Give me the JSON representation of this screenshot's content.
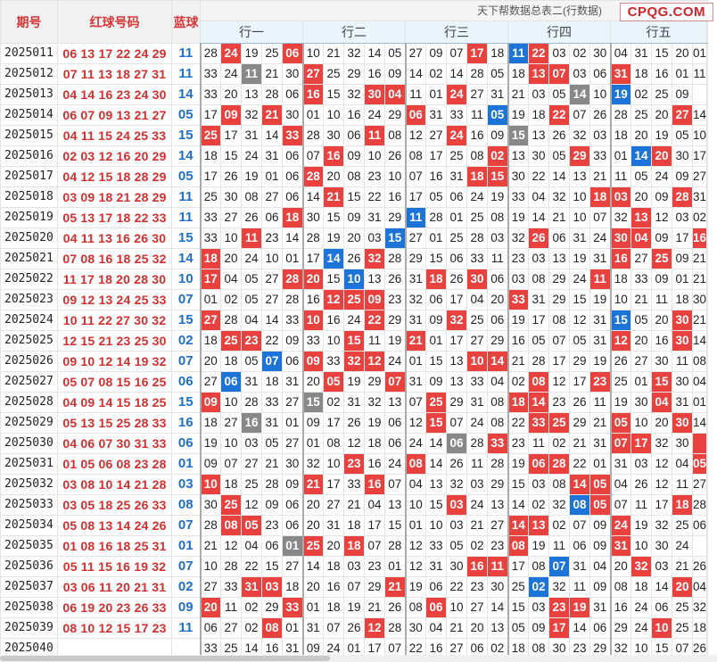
{
  "header": {
    "issue_label": "期号",
    "red_label": "红球号码",
    "blue_label": "蓝球",
    "banner": "天下帮数据总表二(行数据)",
    "logo": "CPQG.COM",
    "groups": [
      "行一",
      "行二",
      "行三",
      "行四",
      "行五"
    ]
  },
  "colors": {
    "red_ball": "#d42e2e",
    "blue_ball": "#1f6fc6",
    "highlight_red": "#e8413e",
    "highlight_blue": "#1c74d8",
    "highlight_gray": "#888888"
  },
  "rows": [
    {
      "issue": "2025011",
      "red": "06 13 17 22 24 29",
      "blue": "11",
      "cells": [
        "28",
        "24",
        "19",
        "25",
        "06",
        "10",
        "21",
        "32",
        "14",
        "05",
        "27",
        "09",
        "07",
        "17",
        "18",
        "11",
        "22",
        "03",
        "02",
        "30",
        "04",
        "31",
        "15",
        "20",
        "01"
      ],
      "hl": {
        "1": "r",
        "4": "r",
        "13": "r",
        "15": "b",
        "16": "r"
      }
    },
    {
      "issue": "2025012",
      "red": "07 11 13 18 27 31",
      "blue": "11",
      "cells": [
        "33",
        "24",
        "11",
        "21",
        "30",
        "27",
        "25",
        "29",
        "16",
        "09",
        "14",
        "02",
        "14",
        "28",
        "05",
        "18",
        "13",
        "07",
        "03",
        "06",
        "31",
        "18",
        "16",
        "01",
        "11"
      ],
      "hl": {
        "2": "g",
        "5": "r",
        "16": "r",
        "17": "r",
        "20": "r"
      }
    },
    {
      "issue": "2025013",
      "red": "04 14 16 23 24 30",
      "blue": "14",
      "cells": [
        "33",
        "20",
        "13",
        "28",
        "06",
        "16",
        "15",
        "32",
        "30",
        "04",
        "11",
        "01",
        "24",
        "27",
        "31",
        "21",
        "03",
        "05",
        "14",
        "10",
        "19",
        "02",
        "25",
        "09",
        ""
      ],
      "hl": {
        "5": "r",
        "8": "r",
        "9": "r",
        "12": "r",
        "18": "g",
        "20": "b"
      }
    },
    {
      "issue": "2025014",
      "red": "06 07 09 13 21 27",
      "blue": "05",
      "cells": [
        "17",
        "09",
        "32",
        "21",
        "30",
        "01",
        "10",
        "16",
        "24",
        "29",
        "06",
        "31",
        "33",
        "11",
        "05",
        "19",
        "18",
        "22",
        "07",
        "26",
        "28",
        "25",
        "20",
        "27",
        "14"
      ],
      "hl": {
        "1": "r",
        "3": "r",
        "10": "r",
        "14": "b",
        "17": "r",
        "23": "r"
      }
    },
    {
      "issue": "2025015",
      "red": "04 11 15 24 25 33",
      "blue": "15",
      "cells": [
        "25",
        "17",
        "31",
        "14",
        "33",
        "28",
        "30",
        "06",
        "11",
        "08",
        "12",
        "27",
        "24",
        "16",
        "09",
        "15",
        "13",
        "26",
        "32",
        "03",
        "18",
        "20",
        "19",
        "05",
        "10"
      ],
      "hl": {
        "0": "r",
        "4": "r",
        "8": "r",
        "12": "r",
        "15": "g"
      }
    },
    {
      "issue": "2025016",
      "red": "02 03 12 16 20 29",
      "blue": "14",
      "cells": [
        "18",
        "15",
        "24",
        "31",
        "06",
        "07",
        "16",
        "09",
        "10",
        "26",
        "08",
        "17",
        "25",
        "08",
        "02",
        "13",
        "30",
        "05",
        "29",
        "33",
        "01",
        "14",
        "20",
        "30",
        "17"
      ],
      "hl": {
        "6": "r",
        "14": "r",
        "18": "r",
        "21": "b",
        "22": "r"
      }
    },
    {
      "issue": "2025017",
      "red": "04 12 15 18 28 29",
      "blue": "05",
      "cells": [
        "17",
        "26",
        "19",
        "01",
        "06",
        "28",
        "20",
        "08",
        "23",
        "10",
        "07",
        "16",
        "31",
        "18",
        "15",
        "30",
        "22",
        "14",
        "13",
        "21",
        "11",
        "05",
        "24",
        "09",
        "27"
      ],
      "hl": {
        "5": "r",
        "13": "r",
        "14": "r"
      }
    },
    {
      "issue": "2025018",
      "red": "03 09 18 21 28 29",
      "blue": "11",
      "cells": [
        "25",
        "30",
        "08",
        "27",
        "06",
        "14",
        "21",
        "15",
        "22",
        "16",
        "17",
        "05",
        "06",
        "24",
        "19",
        "33",
        "04",
        "32",
        "10",
        "18",
        "03",
        "20",
        "09",
        "28",
        "31"
      ],
      "hl": {
        "6": "r",
        "19": "r",
        "20": "r",
        "23": "r"
      }
    },
    {
      "issue": "2025019",
      "red": "05 13 17 18 22 33",
      "blue": "11",
      "cells": [
        "33",
        "27",
        "26",
        "06",
        "18",
        "30",
        "15",
        "09",
        "31",
        "29",
        "11",
        "28",
        "01",
        "25",
        "08",
        "19",
        "14",
        "21",
        "10",
        "07",
        "32",
        "13",
        "12",
        "03",
        "02"
      ],
      "hl": {
        "4": "r",
        "10": "b",
        "21": "r"
      }
    },
    {
      "issue": "2025020",
      "red": "04 11 13 16 26 30",
      "blue": "15",
      "cells": [
        "33",
        "10",
        "11",
        "23",
        "14",
        "28",
        "19",
        "20",
        "03",
        "15",
        "27",
        "01",
        "25",
        "28",
        "03",
        "32",
        "26",
        "06",
        "31",
        "24",
        "30",
        "04",
        "09",
        "17",
        "16"
      ],
      "hl": {
        "2": "r",
        "9": "b",
        "16": "r",
        "20": "r",
        "21": "r",
        "24": "r"
      }
    },
    {
      "issue": "2025021",
      "red": "07 08 16 18 25 32",
      "blue": "14",
      "cells": [
        "18",
        "20",
        "24",
        "10",
        "01",
        "17",
        "14",
        "26",
        "32",
        "28",
        "29",
        "15",
        "06",
        "33",
        "11",
        "23",
        "03",
        "13",
        "19",
        "31",
        "16",
        "27",
        "25",
        "09",
        "21"
      ],
      "hl": {
        "0": "r",
        "6": "b",
        "8": "r",
        "20": "r",
        "22": "r"
      }
    },
    {
      "issue": "2025022",
      "red": "11 17 18 20 28 30",
      "blue": "10",
      "cells": [
        "17",
        "04",
        "05",
        "27",
        "28",
        "20",
        "15",
        "10",
        "13",
        "26",
        "31",
        "18",
        "26",
        "30",
        "06",
        "03",
        "08",
        "29",
        "24",
        "11",
        "18",
        "33",
        "09",
        "01",
        "21"
      ],
      "hl": {
        "0": "r",
        "4": "r",
        "5": "r",
        "7": "b",
        "11": "r",
        "13": "r",
        "19": "r"
      }
    },
    {
      "issue": "2025023",
      "red": "09 12 13 24 25 33",
      "blue": "07",
      "cells": [
        "01",
        "02",
        "05",
        "27",
        "28",
        "16",
        "12",
        "25",
        "09",
        "23",
        "32",
        "06",
        "17",
        "04",
        "20",
        "33",
        "31",
        "29",
        "15",
        "19",
        "10",
        "21",
        "11",
        "18",
        "30"
      ],
      "hl": {
        "6": "r",
        "7": "r",
        "8": "r",
        "15": "r"
      }
    },
    {
      "issue": "2025024",
      "red": "10 11 22 27 30 32",
      "blue": "15",
      "cells": [
        "27",
        "28",
        "04",
        "14",
        "33",
        "10",
        "16",
        "24",
        "22",
        "29",
        "31",
        "09",
        "32",
        "25",
        "06",
        "19",
        "17",
        "08",
        "12",
        "31",
        "15",
        "05",
        "20",
        "30",
        "21"
      ],
      "hl": {
        "0": "r",
        "5": "r",
        "8": "r",
        "12": "r",
        "20": "b",
        "23": "r"
      }
    },
    {
      "issue": "2025025",
      "red": "12 15 21 23 25 30",
      "blue": "02",
      "cells": [
        "18",
        "25",
        "23",
        "22",
        "09",
        "33",
        "10",
        "15",
        "11",
        "19",
        "21",
        "01",
        "17",
        "27",
        "29",
        "16",
        "05",
        "07",
        "05",
        "31",
        "12",
        "20",
        "16",
        "30",
        "14"
      ],
      "hl": {
        "1": "r",
        "2": "r",
        "7": "r",
        "10": "r",
        "20": "r",
        "23": "r"
      }
    },
    {
      "issue": "2025026",
      "red": "09 10 12 14 19 32",
      "blue": "07",
      "cells": [
        "20",
        "18",
        "05",
        "07",
        "06",
        "09",
        "33",
        "32",
        "12",
        "24",
        "01",
        "15",
        "13",
        "10",
        "14",
        "21",
        "28",
        "17",
        "29",
        "19",
        "26",
        "27",
        "30",
        "11",
        "08"
      ],
      "hl": {
        "3": "b",
        "5": "r",
        "7": "r",
        "8": "r",
        "13": "r",
        "14": "r"
      }
    },
    {
      "issue": "2025027",
      "red": "05 07 08 15 16 25",
      "blue": "06",
      "cells": [
        "27",
        "06",
        "31",
        "18",
        "31",
        "20",
        "05",
        "19",
        "29",
        "07",
        "31",
        "09",
        "13",
        "33",
        "04",
        "02",
        "08",
        "12",
        "17",
        "23",
        "25",
        "01",
        "15",
        "30",
        "04"
      ],
      "hl": {
        "1": "b",
        "6": "r",
        "9": "r",
        "16": "r",
        "19": "r",
        "22": "r"
      }
    },
    {
      "issue": "2025028",
      "red": "04 09 14 15 18 25",
      "blue": "15",
      "cells": [
        "09",
        "10",
        "28",
        "33",
        "27",
        "15",
        "02",
        "31",
        "32",
        "13",
        "07",
        "25",
        "29",
        "31",
        "08",
        "18",
        "14",
        "23",
        "26",
        "11",
        "19",
        "30",
        "04",
        "31",
        "01"
      ],
      "hl": {
        "0": "r",
        "5": "g",
        "11": "r",
        "15": "r",
        "16": "r",
        "22": "r"
      }
    },
    {
      "issue": "2025029",
      "red": "05 13 15 25 28 33",
      "blue": "16",
      "cells": [
        "18",
        "27",
        "16",
        "31",
        "01",
        "09",
        "17",
        "26",
        "19",
        "06",
        "12",
        "15",
        "07",
        "24",
        "08",
        "22",
        "33",
        "25",
        "29",
        "21",
        "05",
        "10",
        "20",
        "30",
        "14"
      ],
      "hl": {
        "2": "g",
        "11": "r",
        "16": "r",
        "17": "r",
        "20": "r",
        "23": "r"
      }
    },
    {
      "issue": "2025030",
      "red": "04 06 07 30 31 33",
      "blue": "06",
      "cells": [
        "19",
        "10",
        "03",
        "05",
        "27",
        "01",
        "08",
        "12",
        "18",
        "06",
        "24",
        "14",
        "06",
        "28",
        "33",
        "23",
        "11",
        "02",
        "21",
        "31",
        "07",
        "17",
        "32",
        "30",
        ""
      ],
      "hl": {
        "12": "g",
        "14": "r",
        "20": "r",
        "21": "r",
        "24": "r"
      }
    },
    {
      "issue": "2025031",
      "red": "01 05 06 08 23 28",
      "blue": "01",
      "cells": [
        "09",
        "07",
        "27",
        "21",
        "30",
        "32",
        "10",
        "23",
        "16",
        "24",
        "08",
        "14",
        "26",
        "11",
        "28",
        "19",
        "06",
        "28",
        "22",
        "01",
        "31",
        "03",
        "12",
        "04",
        "05"
      ],
      "hl": {
        "7": "r",
        "10": "r",
        "16": "r",
        "17": "r",
        "24": "r"
      }
    },
    {
      "issue": "2025032",
      "red": "03 08 10 14 21 28",
      "blue": "03",
      "cells": [
        "10",
        "18",
        "25",
        "28",
        "09",
        "21",
        "17",
        "33",
        "16",
        "07",
        "04",
        "13",
        "32",
        "03",
        "29",
        "15",
        "03",
        "08",
        "14",
        "05",
        "04",
        "26",
        "12",
        "11",
        "27"
      ],
      "hl": {
        "0": "r",
        "5": "r",
        "8": "r",
        "18": "r",
        "19": "r"
      }
    },
    {
      "issue": "2025033",
      "red": "03 05 18 25 26 33",
      "blue": "08",
      "cells": [
        "30",
        "25",
        "12",
        "09",
        "06",
        "20",
        "27",
        "21",
        "04",
        "13",
        "10",
        "15",
        "03",
        "24",
        "13",
        "14",
        "02",
        "32",
        "08",
        "05",
        "07",
        "11",
        "17",
        "18",
        "28"
      ],
      "hl": {
        "1": "r",
        "12": "r",
        "18": "b",
        "19": "r",
        "23": "r"
      }
    },
    {
      "issue": "2025034",
      "red": "05 08 13 14 24 26",
      "blue": "07",
      "cells": [
        "28",
        "08",
        "05",
        "23",
        "06",
        "20",
        "31",
        "18",
        "17",
        "15",
        "01",
        "10",
        "03",
        "21",
        "27",
        "14",
        "13",
        "02",
        "07",
        "09",
        "24",
        "19",
        "32",
        "25",
        "06"
      ],
      "hl": {
        "1": "r",
        "2": "r",
        "15": "r",
        "16": "r",
        "20": "r"
      }
    },
    {
      "issue": "2025035",
      "red": "01 08 16 18 25 31",
      "blue": "01",
      "cells": [
        "21",
        "12",
        "04",
        "06",
        "01",
        "25",
        "20",
        "18",
        "07",
        "28",
        "12",
        "33",
        "05",
        "02",
        "23",
        "08",
        "19",
        "11",
        "06",
        "09",
        "31",
        "10",
        "30",
        "24",
        ""
      ],
      "hl": {
        "4": "g",
        "5": "r",
        "7": "r",
        "15": "r",
        "20": "r"
      }
    },
    {
      "issue": "2025036",
      "red": "05 11 15 16 19 32",
      "blue": "07",
      "cells": [
        "10",
        "28",
        "22",
        "15",
        "27",
        "14",
        "18",
        "03",
        "23",
        "01",
        "12",
        "31",
        "30",
        "16",
        "11",
        "17",
        "08",
        "07",
        "31",
        "04",
        "20",
        "32",
        "03",
        "21",
        "26"
      ],
      "hl": {
        "13": "r",
        "14": "r",
        "17": "b",
        "21": "r"
      }
    },
    {
      "issue": "2025037",
      "red": "03 06 11 20 21 31",
      "blue": "02",
      "cells": [
        "27",
        "33",
        "31",
        "03",
        "18",
        "20",
        "16",
        "07",
        "29",
        "21",
        "19",
        "06",
        "22",
        "23",
        "30",
        "25",
        "02",
        "32",
        "11",
        "09",
        "08",
        "18",
        "14",
        "20",
        "04"
      ],
      "hl": {
        "2": "r",
        "3": "r",
        "9": "r",
        "16": "b",
        "23": "r"
      }
    },
    {
      "issue": "2025038",
      "red": "06 19 20 23 26 33",
      "blue": "09",
      "cells": [
        "20",
        "11",
        "02",
        "29",
        "33",
        "01",
        "18",
        "19",
        "21",
        "26",
        "08",
        "06",
        "10",
        "27",
        "14",
        "15",
        "03",
        "23",
        "19",
        "31",
        "16",
        "24",
        "06",
        "25",
        "32"
      ],
      "hl": {
        "0": "r",
        "4": "r",
        "11": "r",
        "17": "r",
        "18": "r"
      }
    },
    {
      "issue": "2025039",
      "red": "08 10 12 15 17 23",
      "blue": "11",
      "cells": [
        "06",
        "27",
        "02",
        "08",
        "01",
        "31",
        "07",
        "26",
        "12",
        "28",
        "30",
        "04",
        "21",
        "20",
        "13",
        "05",
        "09",
        "17",
        "14",
        "06",
        "29",
        "24",
        "10",
        "25",
        "18"
      ],
      "hl": {
        "3": "r",
        "8": "r",
        "17": "r",
        "22": "r"
      }
    },
    {
      "issue": "2025040",
      "red": "",
      "blue": "",
      "cells": [
        "33",
        "25",
        "14",
        "16",
        "31",
        "09",
        "24",
        "01",
        "17",
        "07",
        "22",
        "16",
        "27",
        "06",
        "02",
        "18",
        "08",
        "30",
        "23",
        "29",
        "32",
        "10",
        "15",
        "07",
        "26"
      ],
      "hl": {}
    }
  ]
}
